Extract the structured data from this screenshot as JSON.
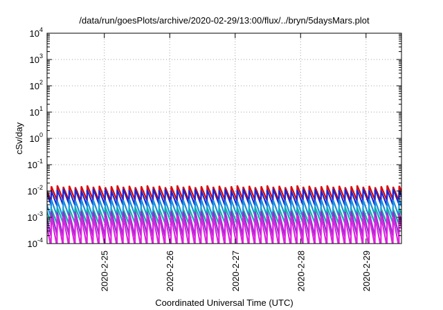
{
  "chart_data": {
    "type": "line",
    "title": "/data/run/goesPlots/archive/2020-02-29/13:00/flux/../bryn/5daysMars.plot",
    "xlabel": "Coordinated Universal Time (UTC)",
    "ylabel": "cSv/day",
    "yscale": "log",
    "ylim": [
      0.0001,
      10000
    ],
    "xlim": [
      "2020-02-24 03:00",
      "2020-02-29 13:00"
    ],
    "grid": true,
    "legend": "none",
    "y_ticks": [
      {
        "base": "10",
        "exp": "-4"
      },
      {
        "base": "10",
        "exp": "-3"
      },
      {
        "base": "10",
        "exp": "-2"
      },
      {
        "base": "10",
        "exp": "-1"
      },
      {
        "base": "10",
        "exp": "0"
      },
      {
        "base": "10",
        "exp": "1"
      },
      {
        "base": "10",
        "exp": "2"
      },
      {
        "base": "10",
        "exp": "3"
      },
      {
        "base": "10",
        "exp": "4"
      }
    ],
    "x_ticks": [
      "2020-2-25",
      "2020-2-26",
      "2020-2-27",
      "2020-2-28",
      "2020-2-29"
    ],
    "cycle_hours": 2.2,
    "series": [
      {
        "color": "#e00000",
        "peak": 0.015,
        "trough": 0.0045
      },
      {
        "color": "#1428d8",
        "peak": 0.011,
        "trough": 0.003
      },
      {
        "color": "#1890e0",
        "peak": 0.0045,
        "trough": 0.0011
      },
      {
        "color": "#10b0a8",
        "peak": 0.0022,
        "trough": 0.0006
      },
      {
        "color": "#9030d0",
        "peak": 0.0016,
        "trough": 0.0002
      },
      {
        "color": "#e020e0",
        "peak": 0.0011,
        "trough": 8e-05
      }
    ]
  }
}
